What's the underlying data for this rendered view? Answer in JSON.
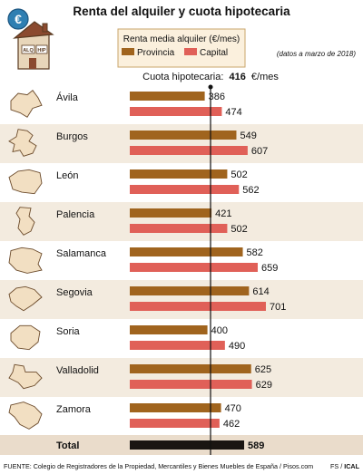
{
  "title": "Renta del alquiler y cuota hipotecaria",
  "legend": {
    "heading": "Renta media alquiler (€/mes)",
    "provincia": "Provincia",
    "capital": "Capital"
  },
  "date_note": "(datos a marzo de 2018)",
  "mortgage": {
    "label": "Cuota hipotecaria:",
    "value": "416",
    "unit": "€/mes"
  },
  "icon_labels": [
    "ALQ",
    "HIP"
  ],
  "total": {
    "label": "Total"
  },
  "footer": {
    "source": "FUENTE: Colegio de Registradores de la Propiedad, Mercantiles y Bienes Muebles de España / Pisos.com",
    "credit_a": "FS / ",
    "credit_b": "ICAL"
  },
  "colors": {
    "provincia": "#a0641e",
    "capital": "#e06058",
    "total": "#1a1512",
    "row_alt": "#f3ebdf",
    "total_band": "#eadccb",
    "map_fill": "#f2dfc2",
    "map_stroke": "#6b4a2a",
    "legend_bg": "#fbf0dd",
    "legend_border": "#c9a66b"
  },
  "chart_data": {
    "type": "bar",
    "orientation": "horizontal",
    "categories": [
      "Ávila",
      "Burgos",
      "León",
      "Palencia",
      "Salamanca",
      "Segovia",
      "Soria",
      "Valladolid",
      "Zamora"
    ],
    "series": [
      {
        "name": "Provincia",
        "values": [
          386,
          549,
          502,
          421,
          582,
          614,
          400,
          625,
          470
        ]
      },
      {
        "name": "Capital",
        "values": [
          474,
          607,
          562,
          502,
          659,
          701,
          490,
          629,
          462
        ]
      }
    ],
    "total": {
      "label": "Total",
      "value": 589
    },
    "reference_line": {
      "label": "Cuota hipotecaria",
      "value": 416
    },
    "xlim": [
      0,
      701
    ]
  }
}
